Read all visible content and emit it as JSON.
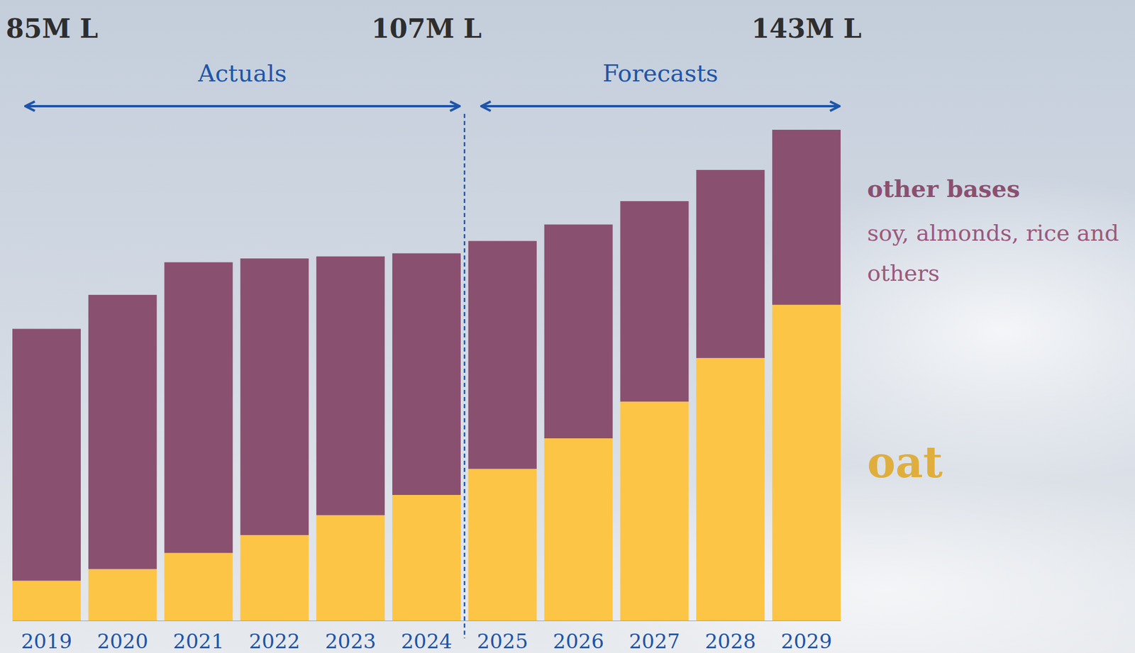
{
  "chart_data": {
    "type": "bar",
    "stacked": true,
    "categories": [
      "2019",
      "2020",
      "2021",
      "2022",
      "2023",
      "2024",
      "2025",
      "2026",
      "2027",
      "2028",
      "2029"
    ],
    "series": [
      {
        "name": "oat",
        "color": "#fdc545",
        "values": [
          11.6,
          15.0,
          19.7,
          24.9,
          30.7,
          36.6,
          44.2,
          53.1,
          63.8,
          76.5,
          92.0
        ]
      },
      {
        "name": "other bases",
        "description": "soy, almonds, rice and others",
        "color": "#8a5070",
        "values": [
          73.4,
          79.9,
          84.7,
          80.6,
          75.4,
          70.4,
          66.4,
          62.3,
          58.4,
          54.8,
          51.0
        ]
      }
    ],
    "annotations": [
      {
        "text": "85M L",
        "category": "2019"
      },
      {
        "text": "107M L",
        "category": "2024"
      },
      {
        "text": "143M L",
        "category": "2029"
      }
    ],
    "periods": [
      {
        "label": "Actuals",
        "from": "2019",
        "to": "2024"
      },
      {
        "label": "Forecasts",
        "from": "2025",
        "to": "2029"
      }
    ],
    "legend": "right",
    "tick_labels": "x"
  }
}
